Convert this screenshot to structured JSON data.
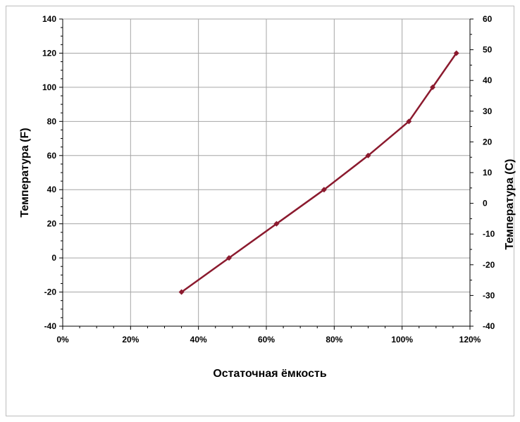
{
  "chart_data": {
    "type": "line",
    "xlabel": "Остаточная ёмкость",
    "ylabel": "Температура  (F)",
    "y2label": "Температура (C)",
    "xlim": [
      0,
      120
    ],
    "ylim": [
      -40,
      140
    ],
    "y2lim": [
      -40,
      60
    ],
    "x_ticks": [
      0,
      20,
      40,
      60,
      80,
      100,
      120
    ],
    "x_tick_labels": [
      "0%",
      "20%",
      "40%",
      "60%",
      "80%",
      "100%",
      "120%"
    ],
    "y_ticks": [
      -40,
      -20,
      0,
      20,
      40,
      60,
      80,
      100,
      120,
      140
    ],
    "y_tick_labels": [
      "-40",
      "-20",
      "0",
      "20",
      "40",
      "60",
      "80",
      "100",
      "120",
      "140"
    ],
    "y2_ticks": [
      -40,
      -30,
      -20,
      -10,
      0,
      10,
      20,
      30,
      40,
      50,
      60
    ],
    "y2_tick_labels": [
      "-40",
      "-30",
      "-20",
      "-10",
      "0",
      "10",
      "20",
      "30",
      "40",
      "50",
      "60"
    ],
    "grid": true,
    "legend": "none",
    "colors": {
      "series": "#8b1a2e",
      "grid": "#a6a6a6",
      "axis": "#000000"
    },
    "series": [
      {
        "x": [
          35,
          49,
          63,
          77,
          90,
          102,
          109,
          116
        ],
        "y": [
          -20,
          0,
          20,
          40,
          60,
          80,
          100,
          120
        ]
      }
    ]
  }
}
